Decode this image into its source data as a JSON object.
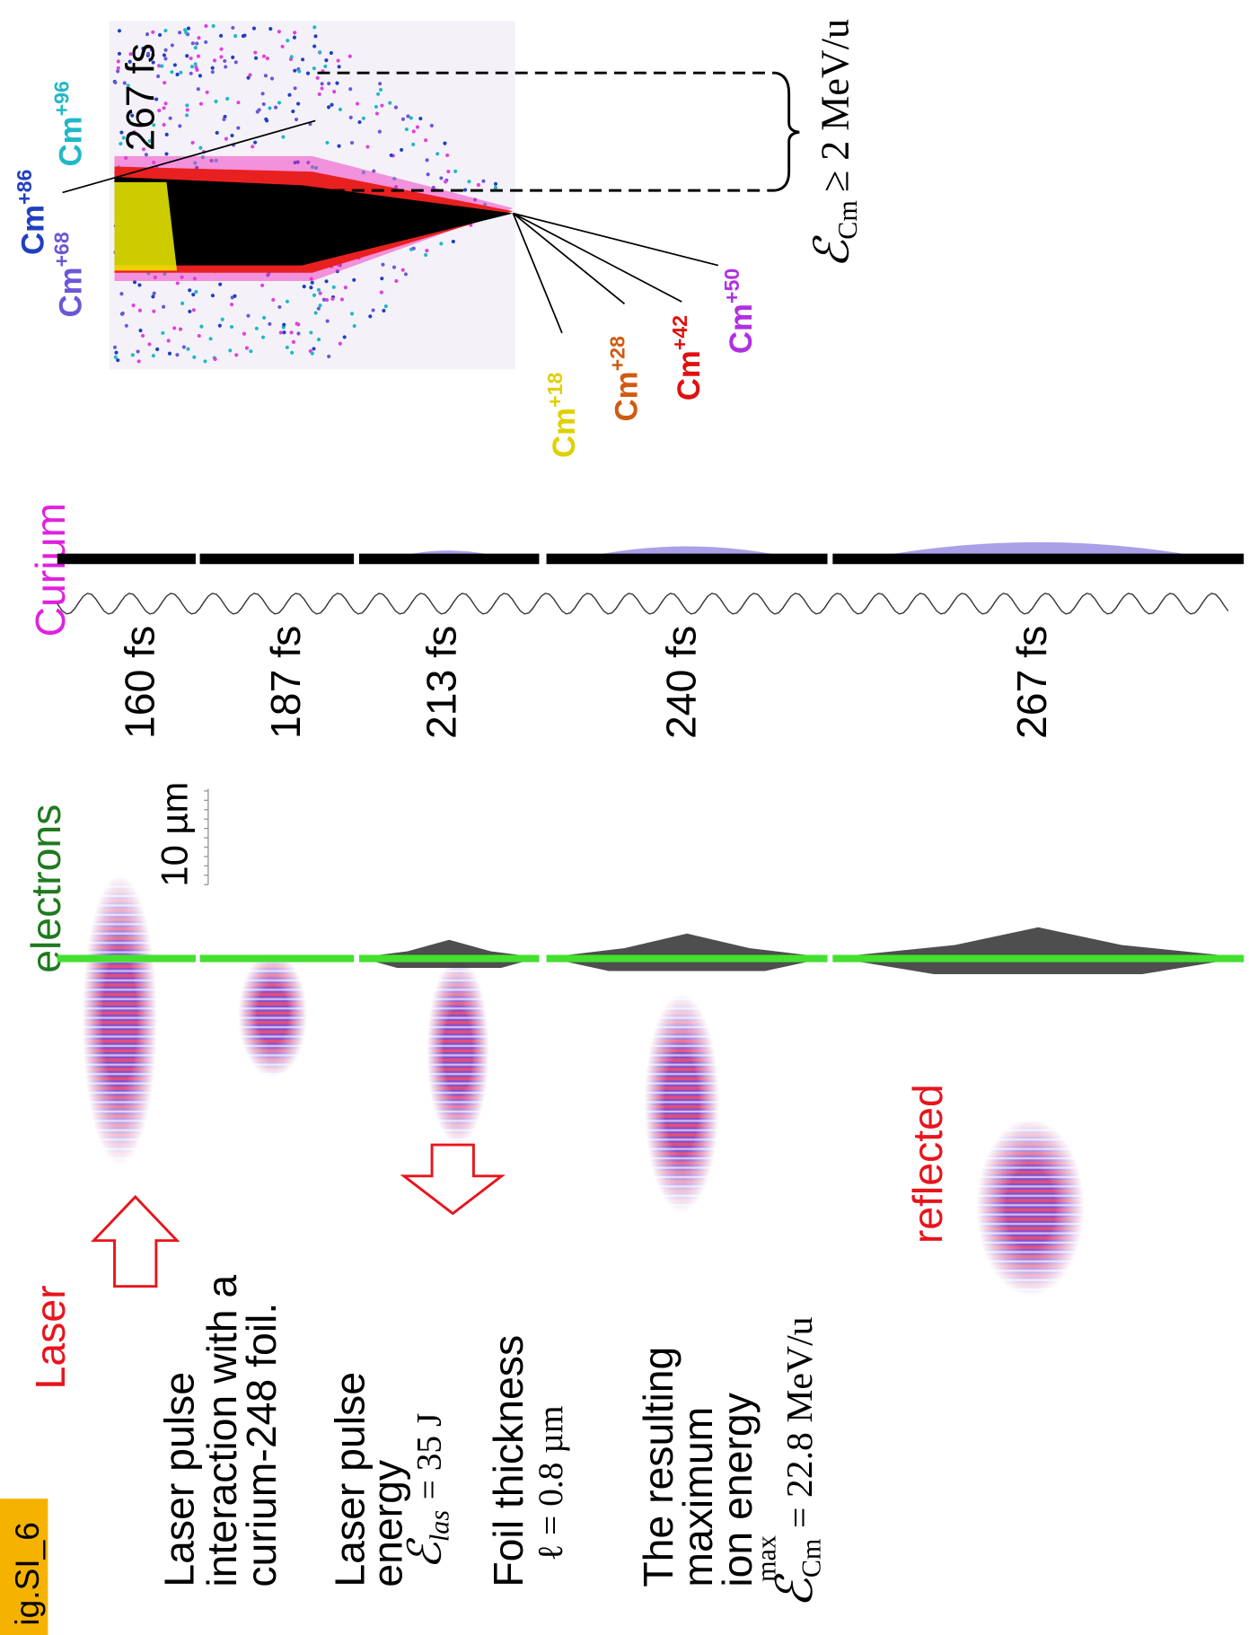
{
  "figure_label": "ig.SI_6",
  "description": {
    "intro": [
      "Laser pulse",
      "interaction with a",
      "curium-248 foil."
    ],
    "energy": {
      "lines": [
        "Laser pulse",
        "energy"
      ],
      "formula": {
        "symbol": "ℰ",
        "subscript": "las",
        "relation": "= 35 J"
      }
    },
    "thickness": {
      "label": "Foil thickness",
      "formula": "ℓ = 0.8 µm"
    },
    "max_energy": {
      "lines": [
        "The resulting",
        "maximum",
        "ion energy"
      ],
      "formula": {
        "symbol": "ℰ",
        "subscript": "Cm",
        "superscript": "max",
        "relation": "= 22.8 MeV/u"
      }
    }
  },
  "labels": {
    "laser": "Laser",
    "electrons": "electrons",
    "scale_bar": "10 µm",
    "curium": "Curium",
    "reflected": "reflected"
  },
  "time_frames": [
    "160 fs",
    "187 fs",
    "213 fs",
    "240 fs",
    "267 fs"
  ],
  "inset": {
    "time": "267 fs",
    "ions": [
      {
        "symbol": "Cm",
        "charge": "+18"
      },
      {
        "symbol": "Cm",
        "charge": "+28"
      },
      {
        "symbol": "Cm",
        "charge": "+42"
      },
      {
        "symbol": "Cm",
        "charge": "+50"
      },
      {
        "symbol": "Cm",
        "charge": "+68"
      },
      {
        "symbol": "Cm",
        "charge": "+86"
      },
      {
        "symbol": "Cm",
        "charge": "+96"
      }
    ],
    "energy_bound": {
      "symbol": "ℰ",
      "subscript": "Cm",
      "relation": "≥ 2 MeV/u"
    }
  }
}
